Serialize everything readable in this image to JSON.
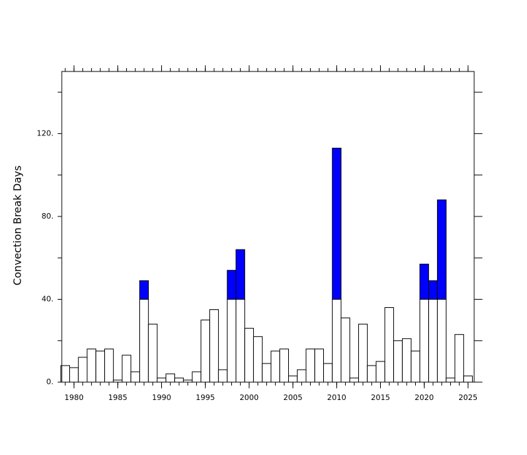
{
  "chart_data": {
    "type": "bar",
    "stacked": true,
    "y_label": "Convection Break Days",
    "x": [
      1979,
      1980,
      1981,
      1982,
      1983,
      1984,
      1985,
      1986,
      1987,
      1988,
      1989,
      1990,
      1991,
      1992,
      1993,
      1994,
      1995,
      1996,
      1997,
      1998,
      1999,
      2000,
      2001,
      2002,
      2003,
      2004,
      2005,
      2006,
      2007,
      2008,
      2009,
      2010,
      2011,
      2012,
      2013,
      2014,
      2015,
      2016,
      2017,
      2018,
      2019,
      2020,
      2021,
      2022,
      2023,
      2024,
      2025
    ],
    "series": [
      {
        "color": "#ffffff",
        "values": [
          8,
          7,
          12,
          16,
          15,
          16,
          1,
          13,
          5,
          40,
          28,
          2,
          4,
          2,
          1,
          5,
          30,
          35,
          6,
          40,
          40,
          26,
          22,
          9,
          15,
          16,
          3,
          6,
          16,
          16,
          9,
          40,
          31,
          2,
          28,
          8,
          10,
          36,
          20,
          21,
          15,
          40,
          40,
          40,
          2,
          23,
          3
        ]
      },
      {
        "color": "#0000ff",
        "values": [
          0,
          0,
          0,
          0,
          0,
          0,
          0,
          0,
          0,
          9,
          0,
          0,
          0,
          0,
          0,
          0,
          0,
          0,
          0,
          14,
          24,
          0,
          0,
          0,
          0,
          0,
          0,
          0,
          0,
          0,
          0,
          73,
          0,
          0,
          0,
          0,
          0,
          0,
          0,
          0,
          0,
          17,
          9,
          48,
          0,
          0,
          0
        ]
      }
    ],
    "xlim": [
      1978.6,
      2025.7
    ],
    "xticks": [
      1980,
      1985,
      1990,
      1995,
      2000,
      2005,
      2010,
      2015,
      2020,
      2025
    ],
    "ylim": [
      0,
      150
    ],
    "yticks": [
      {
        "value": 0,
        "label": "0."
      },
      {
        "value": 40,
        "label": "40."
      },
      {
        "value": 80,
        "label": "80."
      },
      {
        "value": 120,
        "label": "120."
      }
    ],
    "yminorticks": [
      20,
      60,
      100,
      140
    ]
  }
}
